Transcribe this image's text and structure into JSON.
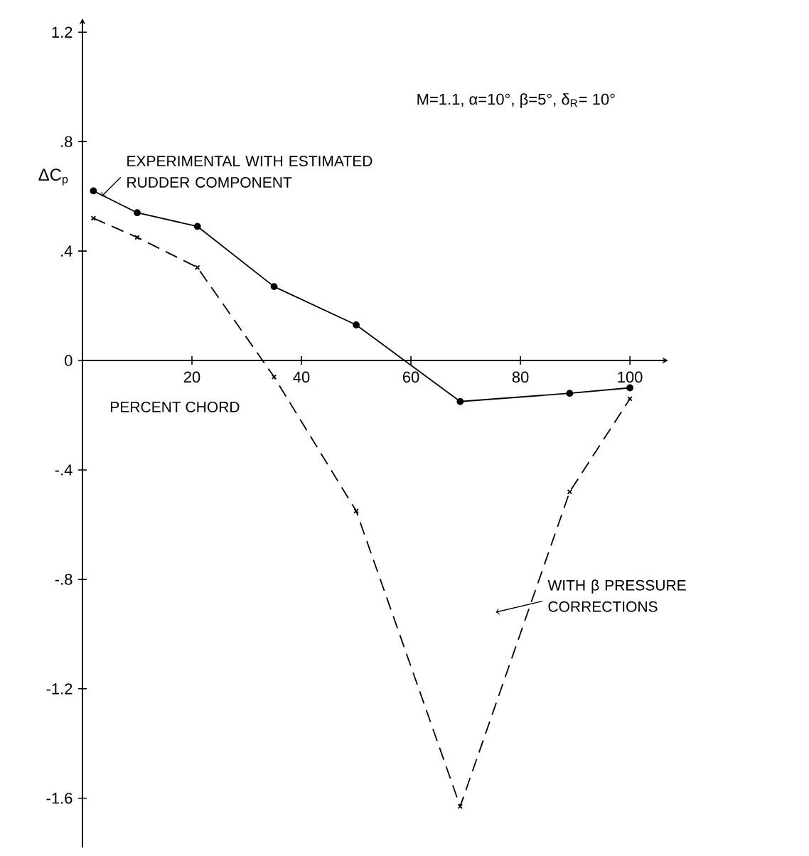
{
  "chart_data": {
    "type": "line",
    "xlabel": "PERCENT CHORD",
    "ylabel": "ΔC$_{p}$",
    "annotations": [
      "M=1.1,  α=10°,  β=5°,  δ$_{R}$= 10°"
    ],
    "x": [
      2,
      10,
      21,
      35,
      50,
      69,
      89,
      100
    ],
    "series": [
      {
        "name": "EXPERIMENTAL WITH ESTIMATED RUDDER COMPONENT",
        "color": "#000000",
        "marker": "circle",
        "line_style": "solid",
        "values": [
          0.62,
          0.54,
          0.49,
          0.27,
          0.13,
          -0.15,
          -0.12,
          -0.1
        ]
      },
      {
        "name": "WITH β PRESSURE CORRECTIONS",
        "color": "#000000",
        "marker": "cross",
        "line_style": "dashed",
        "values": [
          0.52,
          0.45,
          0.34,
          -0.06,
          -0.55,
          -1.63,
          -0.48,
          -0.14
        ]
      }
    ],
    "xlim": [
      0,
      107
    ],
    "ylim": [
      -1.78,
      1.25
    ],
    "xticks": [
      20,
      40,
      60,
      80,
      100
    ],
    "yticks": [
      {
        "value": 1.2,
        "label": "1.2"
      },
      {
        "value": 0.8,
        "label": ".8"
      },
      {
        "value": 0.4,
        "label": ".4"
      },
      0,
      {
        "value": -0.4,
        "label": "-.4"
      },
      {
        "value": -0.8,
        "label": "-.8"
      },
      {
        "value": -1.2,
        "label": "-1.2"
      },
      {
        "value": -1.6,
        "label": "-1.6"
      }
    ],
    "grid": false,
    "legend": false
  }
}
